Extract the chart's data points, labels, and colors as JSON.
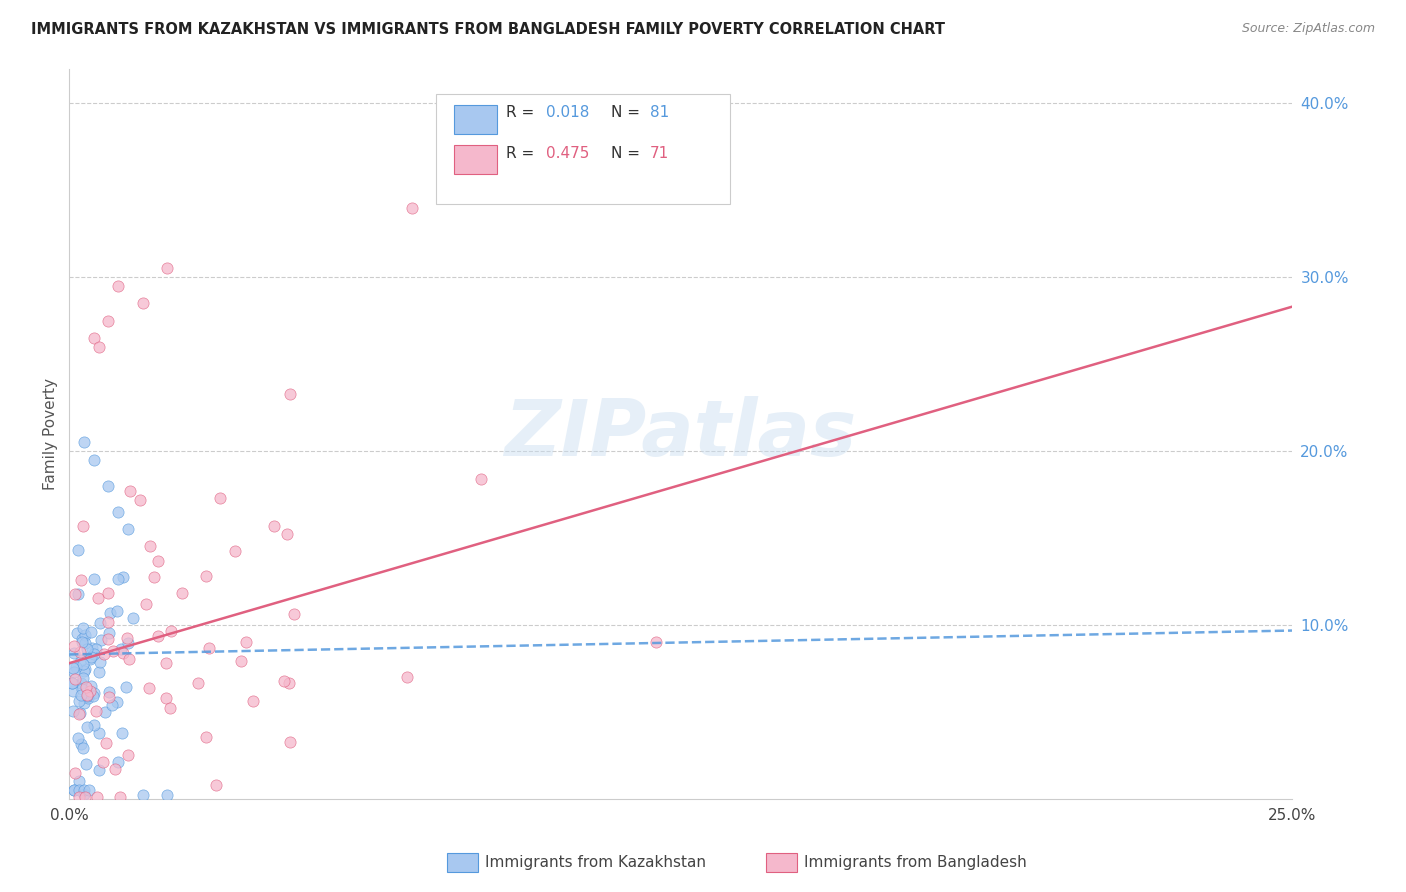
{
  "title": "IMMIGRANTS FROM KAZAKHSTAN VS IMMIGRANTS FROM BANGLADESH FAMILY POVERTY CORRELATION CHART",
  "source": "Source: ZipAtlas.com",
  "ylabel": "Family Poverty",
  "xlim": [
    0.0,
    0.25
  ],
  "ylim": [
    0.0,
    0.42
  ],
  "x_tick_positions": [
    0.0,
    0.05,
    0.1,
    0.15,
    0.2,
    0.25
  ],
  "x_tick_labels": [
    "0.0%",
    "",
    "",
    "",
    "",
    "25.0%"
  ],
  "y_ticks_right": [
    0.1,
    0.2,
    0.3,
    0.4
  ],
  "y_tick_labels_right": [
    "10.0%",
    "20.0%",
    "30.0%",
    "40.0%"
  ],
  "grid_color": "#cccccc",
  "background_color": "#ffffff",
  "watermark": "ZIPatlas",
  "kaz_color": "#a8c8f0",
  "kaz_line_color": "#5599dd",
  "bgd_color": "#f5b8cc",
  "bgd_line_color": "#e06080",
  "kaz_R": 0.018,
  "kaz_N": 81,
  "bgd_R": 0.475,
  "bgd_N": 71,
  "kaz_trend_intercept": 0.083,
  "kaz_trend_slope": 0.055,
  "bgd_trend_intercept": 0.078,
  "bgd_trend_slope": 0.82
}
